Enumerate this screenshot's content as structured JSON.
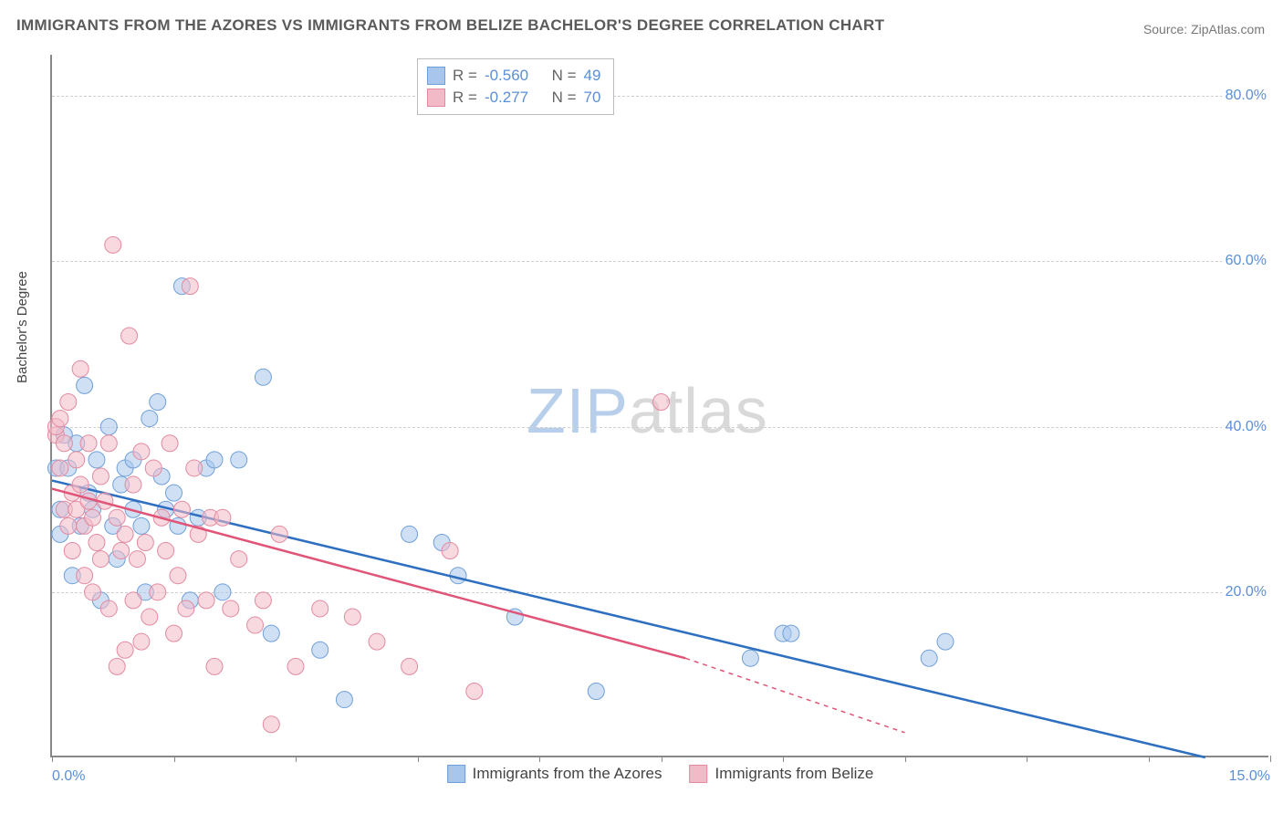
{
  "title": "IMMIGRANTS FROM THE AZORES VS IMMIGRANTS FROM BELIZE BACHELOR'S DEGREE CORRELATION CHART",
  "source_label": "Source:",
  "source_name": "ZipAtlas.com",
  "y_axis_title": "Bachelor's Degree",
  "watermark_a": "ZIP",
  "watermark_b": "atlas",
  "chart": {
    "type": "scatter",
    "xlim": [
      0,
      15
    ],
    "ylim": [
      0,
      85
    ],
    "x_ticks": [
      0,
      1.5,
      3.0,
      4.5,
      6.0,
      7.5,
      9.0,
      10.5,
      12.0,
      13.5,
      15.0
    ],
    "x_tick_labels": {
      "0": "0.0%",
      "15": "15.0%"
    },
    "y_gridlines": [
      20,
      40,
      60,
      80
    ],
    "y_tick_labels": {
      "20": "20.0%",
      "40": "40.0%",
      "60": "60.0%",
      "80": "80.0%"
    },
    "background_color": "#ffffff",
    "grid_color": "#d0d0d0",
    "axis_color": "#888888",
    "marker_radius": 9,
    "marker_opacity": 0.55,
    "series": [
      {
        "name": "Immigrants from the Azores",
        "color_fill": "#a8c6ec",
        "color_stroke": "#6f9fd8",
        "line_color": "#2f6fc0",
        "r_value": "-0.560",
        "n_value": "49",
        "trend": {
          "x1": 0,
          "y1": 33.5,
          "x2": 14.2,
          "y2": 0,
          "dash_after_x": 15
        },
        "points": [
          [
            0.05,
            35
          ],
          [
            0.1,
            30
          ],
          [
            0.1,
            27
          ],
          [
            0.15,
            39
          ],
          [
            0.2,
            35
          ],
          [
            0.25,
            22
          ],
          [
            0.3,
            38
          ],
          [
            0.35,
            28
          ],
          [
            0.4,
            45
          ],
          [
            0.45,
            32
          ],
          [
            0.5,
            30
          ],
          [
            0.55,
            36
          ],
          [
            0.6,
            19
          ],
          [
            0.7,
            40
          ],
          [
            0.75,
            28
          ],
          [
            0.8,
            24
          ],
          [
            0.85,
            33
          ],
          [
            0.9,
            35
          ],
          [
            1.0,
            36
          ],
          [
            1.0,
            30
          ],
          [
            1.1,
            28
          ],
          [
            1.15,
            20
          ],
          [
            1.2,
            41
          ],
          [
            1.3,
            43
          ],
          [
            1.35,
            34
          ],
          [
            1.4,
            30
          ],
          [
            1.5,
            32
          ],
          [
            1.55,
            28
          ],
          [
            1.6,
            57
          ],
          [
            1.7,
            19
          ],
          [
            1.8,
            29
          ],
          [
            1.9,
            35
          ],
          [
            2.0,
            36
          ],
          [
            2.1,
            20
          ],
          [
            2.3,
            36
          ],
          [
            2.6,
            46
          ],
          [
            2.7,
            15
          ],
          [
            3.3,
            13
          ],
          [
            3.6,
            7
          ],
          [
            4.4,
            27
          ],
          [
            4.8,
            26
          ],
          [
            5.0,
            22
          ],
          [
            5.7,
            17
          ],
          [
            6.7,
            8
          ],
          [
            8.6,
            12
          ],
          [
            9.0,
            15
          ],
          [
            9.1,
            15
          ],
          [
            10.8,
            12
          ],
          [
            11.0,
            14
          ]
        ]
      },
      {
        "name": "Immigrants from Belize",
        "color_fill": "#f2b9c6",
        "color_stroke": "#e28aa0",
        "line_color": "#e05577",
        "r_value": "-0.277",
        "n_value": "70",
        "trend": {
          "x1": 0,
          "y1": 32.5,
          "x2": 7.8,
          "y2": 12,
          "dash_after_x": 7.8,
          "x3": 10.5,
          "y3": 3
        },
        "points": [
          [
            0.05,
            39
          ],
          [
            0.05,
            40
          ],
          [
            0.1,
            35
          ],
          [
            0.1,
            41
          ],
          [
            0.15,
            30
          ],
          [
            0.15,
            38
          ],
          [
            0.2,
            43
          ],
          [
            0.2,
            28
          ],
          [
            0.25,
            32
          ],
          [
            0.25,
            25
          ],
          [
            0.3,
            36
          ],
          [
            0.3,
            30
          ],
          [
            0.35,
            47
          ],
          [
            0.35,
            33
          ],
          [
            0.4,
            28
          ],
          [
            0.4,
            22
          ],
          [
            0.45,
            38
          ],
          [
            0.45,
            31
          ],
          [
            0.5,
            29
          ],
          [
            0.5,
            20
          ],
          [
            0.55,
            26
          ],
          [
            0.6,
            34
          ],
          [
            0.6,
            24
          ],
          [
            0.65,
            31
          ],
          [
            0.7,
            38
          ],
          [
            0.7,
            18
          ],
          [
            0.75,
            62
          ],
          [
            0.8,
            29
          ],
          [
            0.8,
            11
          ],
          [
            0.85,
            25
          ],
          [
            0.9,
            13
          ],
          [
            0.9,
            27
          ],
          [
            0.95,
            51
          ],
          [
            1.0,
            19
          ],
          [
            1.0,
            33
          ],
          [
            1.05,
            24
          ],
          [
            1.1,
            14
          ],
          [
            1.1,
            37
          ],
          [
            1.15,
            26
          ],
          [
            1.2,
            17
          ],
          [
            1.25,
            35
          ],
          [
            1.3,
            20
          ],
          [
            1.35,
            29
          ],
          [
            1.4,
            25
          ],
          [
            1.45,
            38
          ],
          [
            1.5,
            15
          ],
          [
            1.55,
            22
          ],
          [
            1.6,
            30
          ],
          [
            1.65,
            18
          ],
          [
            1.7,
            57
          ],
          [
            1.75,
            35
          ],
          [
            1.8,
            27
          ],
          [
            1.9,
            19
          ],
          [
            1.95,
            29
          ],
          [
            2.0,
            11
          ],
          [
            2.1,
            29
          ],
          [
            2.2,
            18
          ],
          [
            2.3,
            24
          ],
          [
            2.5,
            16
          ],
          [
            2.6,
            19
          ],
          [
            2.7,
            4
          ],
          [
            2.8,
            27
          ],
          [
            3.0,
            11
          ],
          [
            3.3,
            18
          ],
          [
            3.7,
            17
          ],
          [
            4.0,
            14
          ],
          [
            4.4,
            11
          ],
          [
            4.9,
            25
          ],
          [
            5.2,
            8
          ],
          [
            7.5,
            43
          ]
        ]
      }
    ]
  },
  "legend": {
    "r_label": "R =",
    "n_label": "N ="
  }
}
